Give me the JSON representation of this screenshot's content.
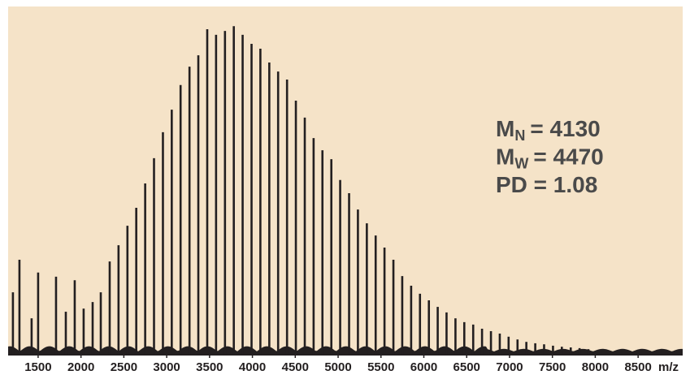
{
  "chart_data": {
    "type": "stem",
    "x_label": "m/z",
    "xlim": [
      1150,
      9020
    ],
    "xticks": [
      1500,
      2000,
      2500,
      3000,
      3500,
      4000,
      4500,
      5000,
      5500,
      6000,
      6500,
      7000,
      7500,
      8000,
      8500
    ],
    "ylim": [
      0,
      100
    ],
    "background": "#f5e3c8",
    "series": [
      {
        "color": "#231f20",
        "x": [
          1206,
          1282,
          1424,
          1500,
          1709,
          1823,
          1927,
          2031,
          2136,
          2231,
          2335,
          2438,
          2542,
          2645,
          2749,
          2852,
          2956,
          3059,
          3162,
          3266,
          3369,
          3473,
          3576,
          3680,
          3783,
          3886,
          3990,
          4093,
          4197,
          4300,
          4404,
          4507,
          4611,
          4714,
          4817,
          4921,
          5024,
          5128,
          5231,
          5335,
          5438,
          5541,
          5645,
          5748,
          5852,
          5955,
          6059,
          6162,
          6265,
          6369,
          6472,
          6576,
          6679,
          6783,
          6886,
          6989,
          7093,
          7196,
          7300,
          7403,
          7507,
          7610,
          7714,
          7817,
          7920
        ],
        "values": [
          18,
          27.4,
          10.5,
          23.7,
          22.5,
          12.4,
          21.5,
          13.3,
          15.2,
          18,
          26.9,
          31.6,
          37.2,
          42.4,
          49.4,
          56.7,
          64.2,
          70.7,
          77.8,
          83.1,
          86.4,
          93.9,
          92.3,
          93.4,
          94.8,
          92.3,
          89.7,
          88.3,
          84.3,
          81.7,
          79.4,
          73.3,
          68.4,
          62.5,
          59.0,
          56.4,
          50.4,
          46.6,
          41.9,
          37.9,
          34.4,
          30.9,
          27.4,
          22.7,
          19.9,
          17.6,
          15.7,
          13.8,
          12.2,
          10.5,
          9.4,
          8.7,
          7.5,
          6.8,
          6.1,
          5.2,
          4.4,
          3.7,
          3.3,
          3.0,
          2.6,
          2.3,
          2.1,
          1.9,
          1.6
        ]
      }
    ],
    "annotations": [
      {
        "main": "M",
        "sub": "N",
        "rest": "= 4130"
      },
      {
        "main": "M",
        "sub": "W",
        "rest": "= 4470"
      },
      {
        "main": "PD = 1.08"
      }
    ]
  }
}
